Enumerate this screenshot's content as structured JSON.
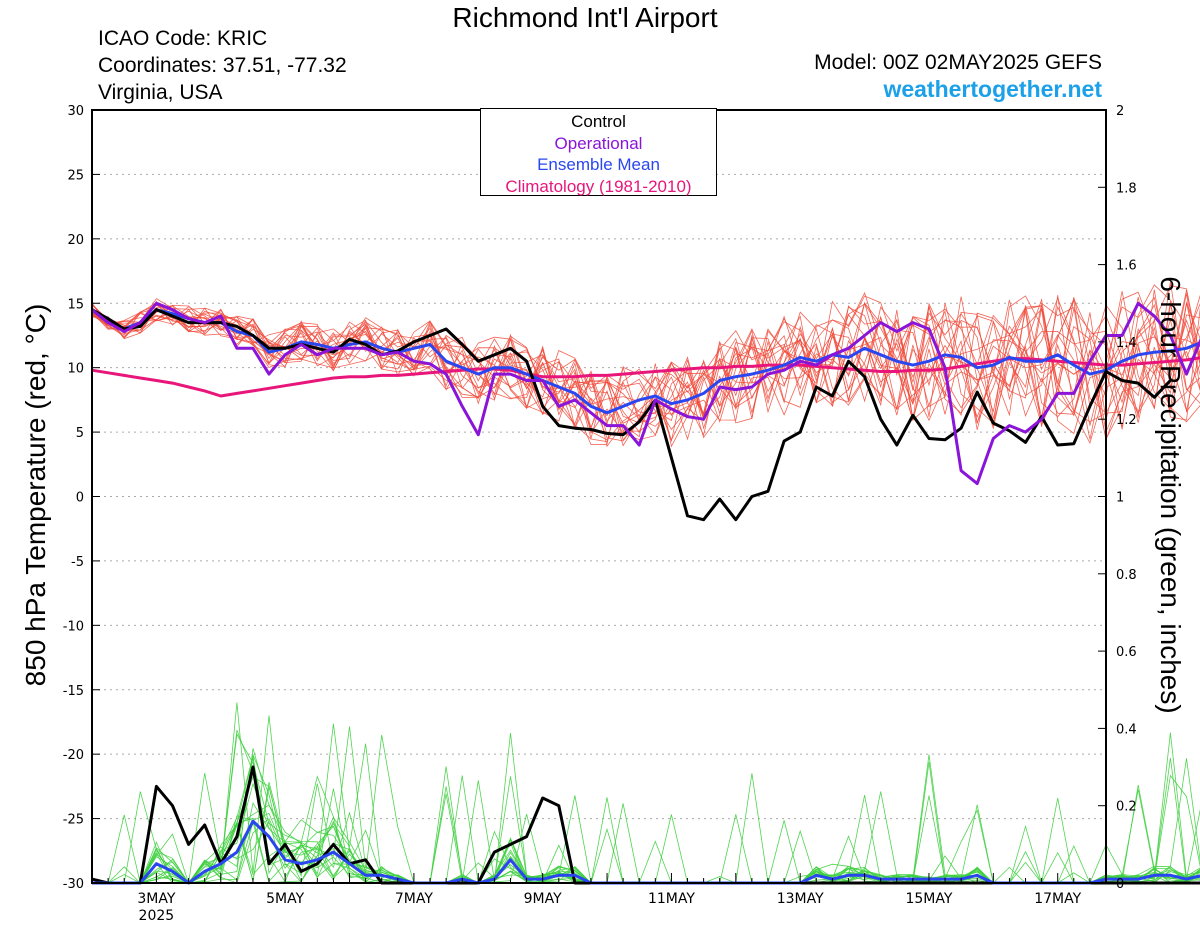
{
  "header": {
    "title": "Richmond Int'l Airport",
    "icao": "ICAO Code: KRIC",
    "coords": "Coordinates: 37.51, -77.32",
    "region": "Virginia, USA",
    "model": "Model: 00Z 02MAY2025 GEFS",
    "site": "weathertogether.net"
  },
  "colors": {
    "members_temp": "#f04a3a",
    "members_precip": "#3ecf3e",
    "control": "#000000",
    "operational": "#8a14d8",
    "ensemble_mean": "#2a46f0",
    "climatology": "#e8167a",
    "site": "#1ca0e8"
  },
  "chart_data": {
    "type": "line",
    "title": "Richmond Int'l Airport",
    "ylabel_left": "850 hPa Temperature (red, °C)",
    "ylabel_right": "6-hour Precipitation (green, inches)",
    "ylim_left": [
      -30,
      30
    ],
    "ylim_right": [
      0,
      2
    ],
    "y_ticks_left": [
      "30",
      "25",
      "20",
      "15",
      "10",
      "5",
      "0",
      "-5",
      "-10",
      "-15",
      "-20",
      "-25",
      "-30"
    ],
    "y_ticks_right": [
      "2",
      "1.8",
      "1.6",
      "1.4",
      "1.2",
      "1",
      "0.8",
      "0.6",
      "0.4",
      "0.2",
      "0"
    ],
    "x_range_days": [
      0,
      15.75
    ],
    "x_ticks": [
      {
        "day": 1,
        "label": "3MAY",
        "sub": "2025"
      },
      {
        "day": 3,
        "label": "5MAY",
        "sub": ""
      },
      {
        "day": 5,
        "label": "7MAY",
        "sub": ""
      },
      {
        "day": 7,
        "label": "9MAY",
        "sub": ""
      },
      {
        "day": 9,
        "label": "11MAY",
        "sub": ""
      },
      {
        "day": 11,
        "label": "13MAY",
        "sub": ""
      },
      {
        "day": 13,
        "label": "15MAY",
        "sub": ""
      },
      {
        "day": 15,
        "label": "17MAY",
        "sub": ""
      }
    ],
    "grid": "horizontal dotted",
    "legend": {
      "position": "top-center",
      "entries": [
        {
          "label": "Control",
          "color": "#000000"
        },
        {
          "label": "Operational",
          "color": "#8a14d8"
        },
        {
          "label": "Ensemble Mean",
          "color": "#2a46f0"
        },
        {
          "label": "Climatology (1981-2010)",
          "color": "#e8167a"
        }
      ]
    },
    "series_temp": [
      {
        "name": "Control",
        "color": "#000000",
        "step_days": 0.25,
        "values": [
          14.5,
          13.8,
          13.0,
          13.2,
          14.5,
          14.0,
          13.5,
          13.5,
          13.5,
          13.2,
          12.5,
          11.5,
          11.5,
          11.8,
          11.5,
          11.2,
          12.2,
          11.8,
          11.0,
          11.3,
          12.0,
          12.5,
          13.0,
          11.8,
          10.5,
          11.0,
          11.5,
          10.5,
          7.0,
          5.5,
          5.3,
          5.2,
          4.9,
          4.8,
          5.8,
          7.5,
          3.0,
          -1.5,
          -1.8,
          -0.2,
          -1.8,
          0.0,
          0.4,
          4.3,
          5.0,
          8.5,
          7.8,
          10.5,
          9.3,
          6.0,
          4.0,
          6.3,
          4.5,
          4.4,
          5.3,
          8.1,
          5.7,
          5.1,
          4.2,
          6.2,
          4.0,
          4.1,
          7.0,
          9.7,
          9.0,
          8.8,
          7.7,
          9.0
        ]
      },
      {
        "name": "Operational",
        "color": "#8a14d8",
        "step_days": 0.25,
        "values": [
          14.5,
          13.5,
          12.8,
          13.5,
          15.0,
          14.5,
          13.8,
          13.5,
          14.0,
          11.5,
          11.5,
          9.5,
          11.0,
          11.8,
          11.0,
          11.5,
          11.5,
          11.5,
          11.0,
          11.2,
          10.5,
          10.3,
          9.5,
          7.0,
          4.8,
          9.5,
          9.5,
          9.0,
          9.0,
          7.0,
          7.5,
          6.5,
          5.5,
          5.5,
          4.0,
          7.5,
          6.8,
          6.2,
          6.0,
          8.5,
          8.3,
          8.5,
          9.5,
          9.8,
          10.5,
          10.2,
          11.0,
          11.5,
          12.5,
          13.5,
          12.8,
          13.5,
          13.0,
          10.0,
          2.0,
          1.0,
          4.5,
          5.5,
          5.0,
          6.0,
          8.0,
          8.0,
          10.5,
          12.5,
          12.5,
          15.0,
          14.0,
          12.5,
          9.5,
          12.5,
          14.0
        ]
      },
      {
        "name": "Ensemble Mean",
        "color": "#2a46f0",
        "step_days": 0.25,
        "values": [
          14.5,
          13.5,
          13.0,
          13.5,
          14.5,
          14.2,
          13.8,
          13.5,
          13.5,
          12.8,
          12.5,
          11.2,
          11.5,
          12.0,
          11.8,
          11.5,
          11.8,
          12.0,
          11.5,
          11.2,
          11.5,
          11.8,
          10.5,
          10.0,
          9.5,
          10.0,
          10.0,
          9.5,
          9.0,
          8.5,
          8.0,
          7.0,
          6.5,
          7.0,
          7.5,
          7.8,
          7.2,
          7.5,
          8.0,
          9.0,
          9.3,
          9.5,
          9.8,
          10.2,
          10.8,
          10.5,
          11.0,
          10.8,
          11.5,
          11.0,
          10.5,
          10.2,
          10.5,
          11.0,
          10.8,
          10.0,
          10.2,
          10.8,
          10.5,
          10.5,
          11.0,
          10.2,
          9.5,
          9.8,
          10.5,
          11.0,
          11.2,
          11.3,
          11.5,
          12.0,
          13.0
        ]
      },
      {
        "name": "Climatology (1981-2010)",
        "color": "#e8167a",
        "step_days": 0.25,
        "values": [
          9.8,
          9.6,
          9.4,
          9.2,
          9.0,
          8.8,
          8.5,
          8.2,
          7.8,
          8.0,
          8.2,
          8.4,
          8.6,
          8.8,
          9.0,
          9.2,
          9.3,
          9.3,
          9.4,
          9.4,
          9.5,
          9.6,
          9.7,
          9.8,
          9.9,
          9.9,
          9.8,
          9.5,
          9.3,
          9.3,
          9.3,
          9.4,
          9.4,
          9.5,
          9.6,
          9.7,
          9.8,
          9.9,
          10.0,
          10.0,
          10.1,
          10.1,
          10.2,
          10.2,
          10.2,
          10.1,
          10.0,
          9.9,
          9.8,
          9.7,
          9.7,
          9.8,
          9.8,
          9.9,
          10.1,
          10.3,
          10.5,
          10.7,
          10.7,
          10.6,
          10.5,
          10.4,
          10.3,
          10.2,
          10.2,
          10.3,
          10.4,
          10.5,
          10.6,
          10.8
        ]
      }
    ],
    "series_precip": [
      {
        "name": "Control",
        "color": "#000000",
        "step_days": 0.25,
        "values": [
          0.01,
          0.0,
          0.0,
          0.0,
          0.25,
          0.2,
          0.1,
          0.15,
          0.05,
          0.12,
          0.3,
          0.05,
          0.1,
          0.03,
          0.05,
          0.1,
          0.05,
          0.06,
          0.0,
          0.0,
          0.0,
          0.0,
          0.0,
          0.0,
          0.0,
          0.08,
          0.1,
          0.12,
          0.22,
          0.2,
          0.0,
          0.0,
          0.0,
          0.0,
          0.0,
          0.0,
          0.0,
          0.0,
          0.0,
          0.0,
          0.0,
          0.0,
          0.0,
          0.0,
          0.0,
          0.0,
          0.0,
          0.0,
          0.0,
          0.0,
          0.0,
          0.0,
          0.0,
          0.0,
          0.0,
          0.0,
          0.0,
          0.0,
          0.0,
          0.0,
          0.0,
          0.0,
          0.0,
          0.0,
          0.0,
          0.0,
          0.0,
          0.0,
          0.0,
          0.0,
          0.0
        ]
      },
      {
        "name": "Ensemble Mean",
        "color": "#2a46f0",
        "step_days": 0.25,
        "values": [
          0.0,
          0.0,
          0.0,
          0.0,
          0.05,
          0.03,
          0.0,
          0.03,
          0.05,
          0.08,
          0.16,
          0.12,
          0.06,
          0.05,
          0.06,
          0.08,
          0.05,
          0.02,
          0.02,
          0.01,
          0.0,
          0.0,
          0.0,
          0.01,
          0.0,
          0.01,
          0.06,
          0.01,
          0.01,
          0.02,
          0.02,
          0.0,
          0.0,
          0.0,
          0.0,
          0.0,
          0.0,
          0.0,
          0.0,
          0.0,
          0.0,
          0.0,
          0.0,
          0.0,
          0.0,
          0.02,
          0.01,
          0.02,
          0.02,
          0.01,
          0.01,
          0.01,
          0.01,
          0.01,
          0.01,
          0.02,
          0.0,
          0.0,
          0.0,
          0.0,
          0.0,
          0.0,
          0.0,
          0.01,
          0.01,
          0.01,
          0.02,
          0.02,
          0.01,
          0.02,
          0.02
        ]
      }
    ]
  }
}
